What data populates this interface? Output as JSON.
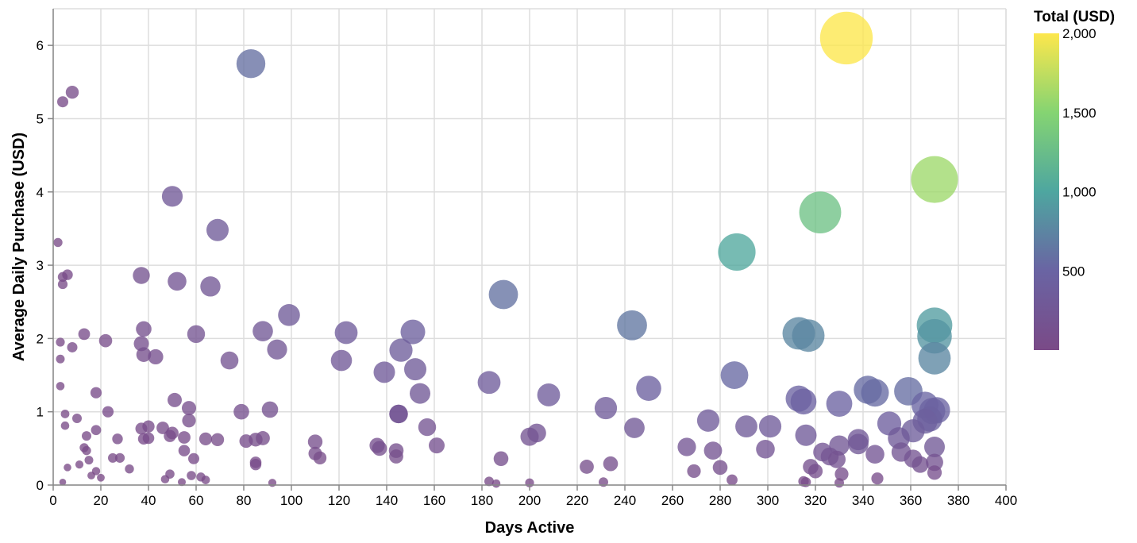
{
  "chart_data": {
    "type": "scatter",
    "xlabel": "Days Active",
    "ylabel": "Average Daily Purchase (USD)",
    "xlim": [
      0,
      400
    ],
    "ylim": [
      0,
      6.5
    ],
    "x_ticks": [
      0,
      20,
      40,
      60,
      80,
      100,
      120,
      140,
      160,
      180,
      200,
      220,
      240,
      260,
      280,
      300,
      320,
      340,
      360,
      380,
      400
    ],
    "y_ticks": [
      0,
      1,
      2,
      3,
      4,
      5,
      6
    ],
    "grid": true,
    "size_encoding": "Total (USD)",
    "color_encoding": "Total (USD)",
    "legend": {
      "title": "Total (USD)",
      "placement": "right",
      "labels": [
        "2,000",
        "1,500",
        "1,000",
        "500"
      ],
      "label_values": [
        2000,
        1500,
        1000,
        500
      ],
      "domain": [
        0,
        2000
      ]
    },
    "colors": [
      "#440154",
      "#3b528b",
      "#21918c",
      "#5ec962",
      "#fde725"
    ],
    "points": [
      {
        "x": 333,
        "y": 6.1
      },
      {
        "x": 83,
        "y": 5.75
      },
      {
        "x": 370,
        "y": 4.17
      },
      {
        "x": 322,
        "y": 3.72
      },
      {
        "x": 287,
        "y": 3.18
      },
      {
        "x": 50,
        "y": 3.94
      },
      {
        "x": 69,
        "y": 3.48
      },
      {
        "x": 189,
        "y": 2.6
      },
      {
        "x": 243,
        "y": 2.18
      },
      {
        "x": 370,
        "y": 2.18
      },
      {
        "x": 313,
        "y": 2.07
      },
      {
        "x": 317,
        "y": 2.04
      },
      {
        "x": 370,
        "y": 2.03
      },
      {
        "x": 370,
        "y": 1.73
      },
      {
        "x": 99,
        "y": 2.32
      },
      {
        "x": 123,
        "y": 2.08
      },
      {
        "x": 151,
        "y": 2.09
      },
      {
        "x": 88,
        "y": 2.1
      },
      {
        "x": 60,
        "y": 2.06
      },
      {
        "x": 94,
        "y": 1.85
      },
      {
        "x": 146,
        "y": 1.84
      },
      {
        "x": 121,
        "y": 1.7
      },
      {
        "x": 152,
        "y": 1.58
      },
      {
        "x": 139,
        "y": 1.54
      },
      {
        "x": 286,
        "y": 1.5
      },
      {
        "x": 250,
        "y": 1.32
      },
      {
        "x": 342,
        "y": 1.3
      },
      {
        "x": 345,
        "y": 1.26
      },
      {
        "x": 359,
        "y": 1.28
      },
      {
        "x": 313,
        "y": 1.18
      },
      {
        "x": 315,
        "y": 1.14
      },
      {
        "x": 330,
        "y": 1.11
      },
      {
        "x": 366,
        "y": 1.09
      },
      {
        "x": 369,
        "y": 1.01
      },
      {
        "x": 371,
        "y": 1.02
      },
      {
        "x": 183,
        "y": 1.4
      },
      {
        "x": 208,
        "y": 1.23
      },
      {
        "x": 154,
        "y": 1.25
      },
      {
        "x": 232,
        "y": 1.05
      },
      {
        "x": 351,
        "y": 0.84
      },
      {
        "x": 366,
        "y": 0.87
      },
      {
        "x": 368,
        "y": 0.9
      },
      {
        "x": 361,
        "y": 0.74
      },
      {
        "x": 355,
        "y": 0.64
      },
      {
        "x": 275,
        "y": 0.88
      },
      {
        "x": 291,
        "y": 0.8
      },
      {
        "x": 301,
        "y": 0.8
      },
      {
        "x": 316,
        "y": 0.68
      },
      {
        "x": 338,
        "y": 0.62
      },
      {
        "x": 338,
        "y": 0.56
      },
      {
        "x": 330,
        "y": 0.54
      },
      {
        "x": 244,
        "y": 0.78
      },
      {
        "x": 203,
        "y": 0.71
      },
      {
        "x": 200,
        "y": 0.66
      },
      {
        "x": 37,
        "y": 2.86
      },
      {
        "x": 52,
        "y": 2.78
      },
      {
        "x": 66,
        "y": 2.71
      },
      {
        "x": 74,
        "y": 1.7
      },
      {
        "x": 37,
        "y": 1.93
      },
      {
        "x": 38,
        "y": 2.13
      },
      {
        "x": 38,
        "y": 1.78
      },
      {
        "x": 43,
        "y": 1.75
      },
      {
        "x": 51,
        "y": 1.16
      },
      {
        "x": 57,
        "y": 1.05
      },
      {
        "x": 57,
        "y": 0.88
      },
      {
        "x": 79,
        "y": 1.0
      },
      {
        "x": 91,
        "y": 1.03
      },
      {
        "x": 145,
        "y": 0.97
      },
      {
        "x": 145,
        "y": 0.97
      },
      {
        "x": 157,
        "y": 0.79
      },
      {
        "x": 266,
        "y": 0.52
      },
      {
        "x": 277,
        "y": 0.47
      },
      {
        "x": 299,
        "y": 0.49
      },
      {
        "x": 323,
        "y": 0.45
      },
      {
        "x": 326,
        "y": 0.39
      },
      {
        "x": 329,
        "y": 0.35
      },
      {
        "x": 345,
        "y": 0.42
      },
      {
        "x": 356,
        "y": 0.45
      },
      {
        "x": 361,
        "y": 0.36
      },
      {
        "x": 364,
        "y": 0.28
      },
      {
        "x": 370,
        "y": 0.52
      },
      {
        "x": 370,
        "y": 0.31
      },
      {
        "x": 318,
        "y": 0.25
      },
      {
        "x": 320,
        "y": 0.19
      },
      {
        "x": 280,
        "y": 0.24
      },
      {
        "x": 269,
        "y": 0.19
      },
      {
        "x": 234,
        "y": 0.29
      },
      {
        "x": 224,
        "y": 0.25
      },
      {
        "x": 188,
        "y": 0.36
      },
      {
        "x": 161,
        "y": 0.54
      },
      {
        "x": 136,
        "y": 0.54
      },
      {
        "x": 137,
        "y": 0.5
      },
      {
        "x": 144,
        "y": 0.47
      },
      {
        "x": 144,
        "y": 0.39
      },
      {
        "x": 110,
        "y": 0.59
      },
      {
        "x": 110,
        "y": 0.43
      },
      {
        "x": 112,
        "y": 0.37
      },
      {
        "x": 81,
        "y": 0.6
      },
      {
        "x": 85,
        "y": 0.62
      },
      {
        "x": 88,
        "y": 0.64
      },
      {
        "x": 85,
        "y": 0.31
      },
      {
        "x": 85,
        "y": 0.28
      },
      {
        "x": 64,
        "y": 0.63
      },
      {
        "x": 69,
        "y": 0.62
      },
      {
        "x": 55,
        "y": 0.65
      },
      {
        "x": 55,
        "y": 0.47
      },
      {
        "x": 59,
        "y": 0.36
      },
      {
        "x": 49,
        "y": 0.67
      },
      {
        "x": 50,
        "y": 0.71
      },
      {
        "x": 46,
        "y": 0.78
      },
      {
        "x": 40,
        "y": 0.8
      },
      {
        "x": 37,
        "y": 0.77
      },
      {
        "x": 38,
        "y": 0.63
      },
      {
        "x": 40,
        "y": 0.64
      },
      {
        "x": 4,
        "y": 5.23
      },
      {
        "x": 8,
        "y": 5.36
      },
      {
        "x": 2,
        "y": 3.31
      },
      {
        "x": 4,
        "y": 2.84
      },
      {
        "x": 6,
        "y": 2.87
      },
      {
        "x": 4,
        "y": 2.74
      },
      {
        "x": 13,
        "y": 2.06
      },
      {
        "x": 22,
        "y": 1.97
      },
      {
        "x": 3,
        "y": 1.95
      },
      {
        "x": 8,
        "y": 1.88
      },
      {
        "x": 3,
        "y": 1.72
      },
      {
        "x": 3,
        "y": 1.35
      },
      {
        "x": 18,
        "y": 1.26
      },
      {
        "x": 23,
        "y": 1.0
      },
      {
        "x": 5,
        "y": 0.97
      },
      {
        "x": 10,
        "y": 0.91
      },
      {
        "x": 5,
        "y": 0.81
      },
      {
        "x": 18,
        "y": 0.75
      },
      {
        "x": 14,
        "y": 0.67
      },
      {
        "x": 27,
        "y": 0.63
      },
      {
        "x": 13,
        "y": 0.51
      },
      {
        "x": 14,
        "y": 0.47
      },
      {
        "x": 15,
        "y": 0.34
      },
      {
        "x": 11,
        "y": 0.28
      },
      {
        "x": 6,
        "y": 0.24
      },
      {
        "x": 16,
        "y": 0.13
      },
      {
        "x": 18,
        "y": 0.19
      },
      {
        "x": 20,
        "y": 0.1
      },
      {
        "x": 25,
        "y": 0.37
      },
      {
        "x": 28,
        "y": 0.37
      },
      {
        "x": 32,
        "y": 0.22
      },
      {
        "x": 4,
        "y": 0.04
      },
      {
        "x": 47,
        "y": 0.08
      },
      {
        "x": 49,
        "y": 0.15
      },
      {
        "x": 54,
        "y": 0.04
      },
      {
        "x": 58,
        "y": 0.13
      },
      {
        "x": 62,
        "y": 0.11
      },
      {
        "x": 64,
        "y": 0.07
      },
      {
        "x": 92,
        "y": 0.03
      },
      {
        "x": 183,
        "y": 0.05
      },
      {
        "x": 186,
        "y": 0.02
      },
      {
        "x": 200,
        "y": 0.03
      },
      {
        "x": 231,
        "y": 0.04
      },
      {
        "x": 285,
        "y": 0.07
      },
      {
        "x": 315,
        "y": 0.05
      },
      {
        "x": 316,
        "y": 0.04
      },
      {
        "x": 330,
        "y": 0.03
      },
      {
        "x": 331,
        "y": 0.15
      },
      {
        "x": 346,
        "y": 0.09
      },
      {
        "x": 370,
        "y": 0.17
      }
    ]
  }
}
